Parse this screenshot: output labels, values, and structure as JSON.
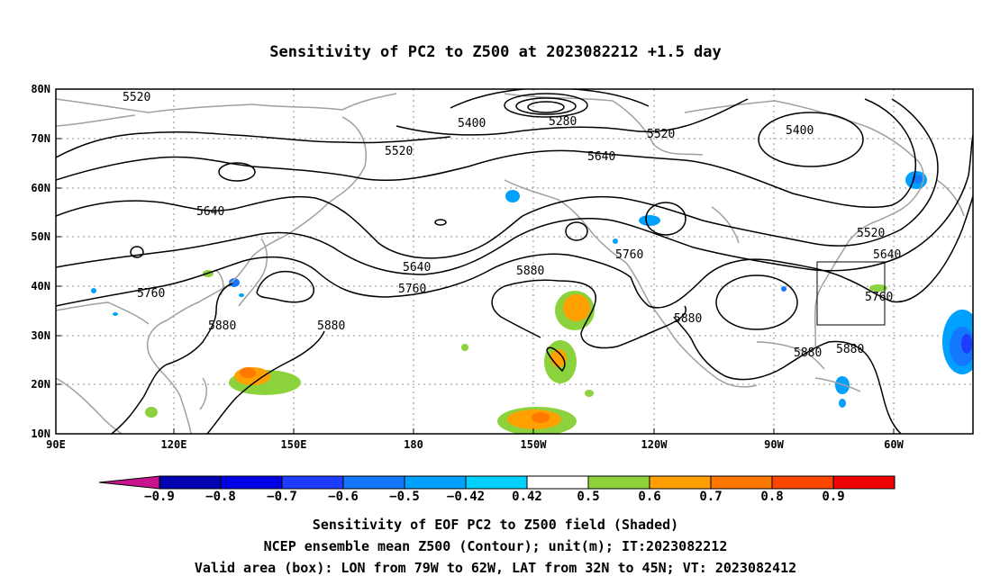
{
  "title": "Sensitivity of PC2 to Z500 at 2023082212 +1.5 day",
  "captions": [
    "Sensitivity of EOF PC2 to Z500 field (Shaded)",
    "NCEP ensemble mean Z500 (Contour); unit(m); IT:2023082212",
    "Valid area (box): LON from 79W to 62W, LAT from 32N to 45N; VT: 2023082412"
  ],
  "lon_ticks": [
    "90E",
    "120E",
    "150E",
    "180",
    "150W",
    "120W",
    "90W",
    "60W"
  ],
  "lat_ticks": [
    "80N",
    "70N",
    "60N",
    "50N",
    "40N",
    "30N",
    "20N",
    "10N"
  ],
  "contour_labels": [
    {
      "text": "5520"
    },
    {
      "text": "5400"
    },
    {
      "text": "5280"
    },
    {
      "text": "5520"
    },
    {
      "text": "5520"
    },
    {
      "text": "5400"
    },
    {
      "text": "5640"
    },
    {
      "text": "5640"
    },
    {
      "text": "5520"
    },
    {
      "text": "5640"
    },
    {
      "text": "5760"
    },
    {
      "text": "5640"
    },
    {
      "text": "5760"
    },
    {
      "text": "5880"
    },
    {
      "text": "5760"
    },
    {
      "text": "5880"
    },
    {
      "text": "5880"
    },
    {
      "text": "5880"
    },
    {
      "text": "5760"
    },
    {
      "text": "5880"
    },
    {
      "text": "5880"
    }
  ],
  "colorbar": {
    "labels": [
      "−0.9",
      "−0.8",
      "−0.7",
      "−0.6",
      "−0.5",
      "−0.42",
      "0.42",
      "0.5",
      "0.6",
      "0.7",
      "0.8",
      "0.9"
    ],
    "colors": [
      "#0000b0",
      "#0000e6",
      "#1e3cff",
      "#1478ff",
      "#00a0ff",
      "#00d2ff",
      "#ffffff",
      "#8cd23c",
      "#ffa000",
      "#ff7800",
      "#ff4600",
      "#f00000"
    ],
    "low_end_color": "#c8148c",
    "high_end_color": "#f5a0c8"
  },
  "valid_box": {
    "lon_min": "79W",
    "lon_max": "62W",
    "lat_min": "32N",
    "lat_max": "45N"
  },
  "colors": {
    "contour": "#000000",
    "coast": "#a0a0a0",
    "grid": "#909090"
  }
}
